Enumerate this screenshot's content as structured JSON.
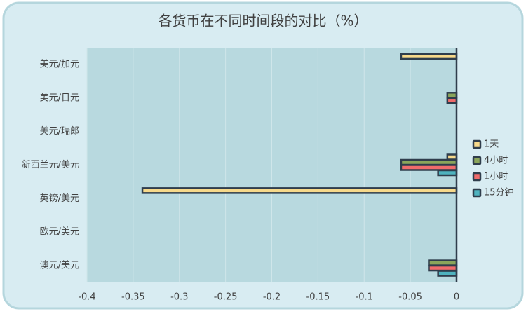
{
  "chart_data": {
    "type": "hbar",
    "title": "各货币在不同时间段的对比（%）",
    "categories": [
      "美元/加元",
      "美元/日元",
      "美元/瑞郎",
      "新西兰元/美元",
      "英镑/美元",
      "欧元/美元",
      "澳元/美元"
    ],
    "series": [
      {
        "name": "1天",
        "color": "#f7d98b",
        "values": [
          -0.06,
          0,
          0,
          -0.01,
          -0.34,
          0,
          0
        ]
      },
      {
        "name": "4小时",
        "color": "#8aa55a",
        "values": [
          0,
          -0.01,
          0,
          -0.06,
          0,
          0,
          -0.03
        ]
      },
      {
        "name": "1小时",
        "color": "#f06b6b",
        "values": [
          0,
          -0.01,
          0,
          -0.06,
          0,
          0,
          -0.03
        ]
      },
      {
        "name": "15分钟",
        "color": "#4fb3bf",
        "values": [
          0,
          0,
          0,
          -0.02,
          0,
          0,
          -0.02
        ]
      }
    ],
    "xlim": [
      -0.4,
      0
    ],
    "xticks": [
      -0.4,
      -0.35,
      -0.3,
      -0.25,
      -0.2,
      -0.15,
      -0.1,
      -0.05,
      0
    ],
    "grid": true,
    "legend": "right"
  }
}
